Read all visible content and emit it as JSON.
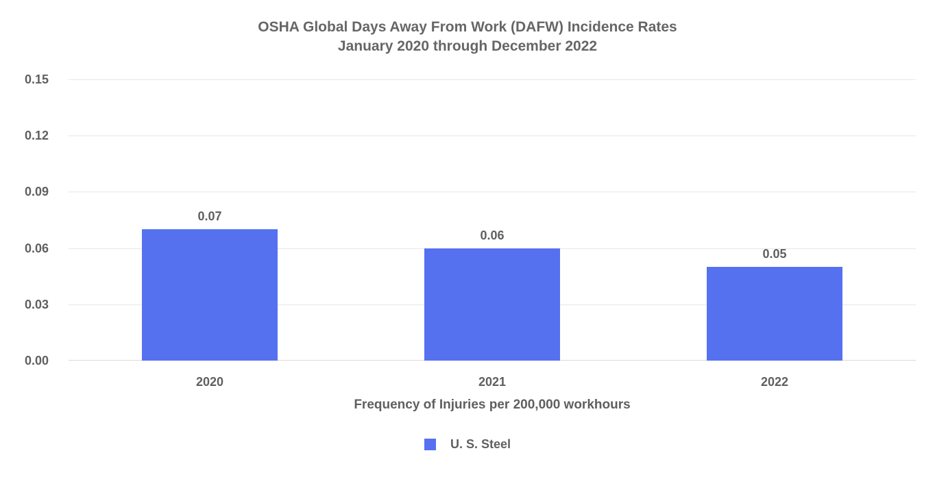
{
  "chart_data": {
    "type": "bar",
    "title": "OSHA Global Days Away From Work (DAFW) Incidence Rates",
    "subtitle": "January 2020 through December 2022",
    "categories": [
      "2020",
      "2021",
      "2022"
    ],
    "series": [
      {
        "name": "U. S. Steel",
        "values": [
          0.07,
          0.06,
          0.05
        ]
      }
    ],
    "data_labels": [
      "0.07",
      "0.06",
      "0.05"
    ],
    "xlabel": "Frequency of Injuries per 200,000 workhours",
    "ylabel": "",
    "ylim": [
      0,
      0.15
    ],
    "ytick_labels": [
      "0.00",
      "0.03",
      "0.06",
      "0.09",
      "0.12",
      "0.15"
    ],
    "grid": true,
    "bar_color": "#5571F0",
    "legend": {
      "position": "bottom",
      "entries": [
        {
          "label": "U. S. Steel",
          "color": "#5571F0"
        }
      ]
    }
  },
  "colors": {
    "bar": "#5571F0",
    "title_text": "#666666",
    "label_text": "#5f5f5f",
    "gridline": "#e6e6e6",
    "baseline": "#d9d9d9",
    "background": "#ffffff"
  }
}
